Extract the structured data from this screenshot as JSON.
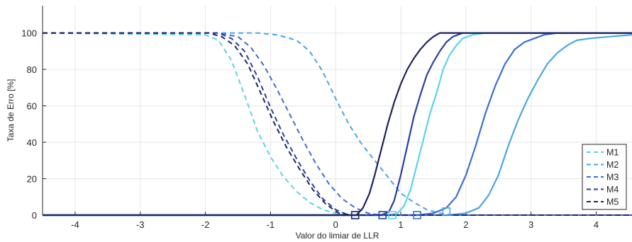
{
  "chart_data": {
    "type": "line",
    "title": "",
    "xlabel": "Valor do limiar de LLR",
    "ylabel": "Taxa de Erro [%]",
    "xlim": [
      -4.5,
      4.55
    ],
    "ylim": [
      0,
      115
    ],
    "xticks": [
      -4,
      -3,
      -2,
      -1,
      0,
      1,
      2,
      3,
      4
    ],
    "yticks": [
      0,
      20,
      40,
      60,
      80,
      100
    ],
    "grid": true,
    "legend_position": "right",
    "series": [
      {
        "name": "M1",
        "color": "#5bd3ea",
        "dashed_curve": [
          [
            -4.5,
            100
          ],
          [
            -2.0,
            99
          ],
          [
            -1.8,
            96
          ],
          [
            -1.6,
            85
          ],
          [
            -1.4,
            66
          ],
          [
            -1.2,
            46
          ],
          [
            -1.0,
            32
          ],
          [
            -0.8,
            21
          ],
          [
            -0.6,
            13
          ],
          [
            -0.4,
            7
          ],
          [
            -0.2,
            3
          ],
          [
            0.0,
            1
          ],
          [
            0.2,
            0
          ],
          [
            4.55,
            0
          ]
        ],
        "solid_curve": [
          [
            -4.5,
            0
          ],
          [
            0.8,
            0
          ],
          [
            0.95,
            1
          ],
          [
            1.05,
            5
          ],
          [
            1.15,
            14
          ],
          [
            1.25,
            28
          ],
          [
            1.35,
            42
          ],
          [
            1.45,
            56
          ],
          [
            1.55,
            67
          ],
          [
            1.65,
            80
          ],
          [
            1.75,
            88
          ],
          [
            1.85,
            93
          ],
          [
            1.95,
            97
          ],
          [
            2.1,
            99
          ],
          [
            2.3,
            100
          ],
          [
            4.55,
            100
          ]
        ],
        "marker": [
          0.87,
          0
        ]
      },
      {
        "name": "M2",
        "color": "#4ba6e4",
        "dashed_curve": [
          [
            -4.5,
            100
          ],
          [
            -1.2,
            100
          ],
          [
            -0.9,
            99
          ],
          [
            -0.6,
            96
          ],
          [
            -0.4,
            90
          ],
          [
            -0.2,
            79
          ],
          [
            0.0,
            64
          ],
          [
            0.2,
            50
          ],
          [
            0.4,
            39
          ],
          [
            0.6,
            30
          ],
          [
            0.8,
            21
          ],
          [
            1.0,
            12
          ],
          [
            1.2,
            7
          ],
          [
            1.4,
            3
          ],
          [
            1.6,
            1
          ],
          [
            1.8,
            0
          ],
          [
            4.55,
            0
          ]
        ],
        "solid_curve": [
          [
            -4.5,
            0
          ],
          [
            1.7,
            0
          ],
          [
            2.0,
            1
          ],
          [
            2.2,
            4
          ],
          [
            2.35,
            11
          ],
          [
            2.5,
            22
          ],
          [
            2.65,
            38
          ],
          [
            2.8,
            52
          ],
          [
            2.95,
            64
          ],
          [
            3.1,
            74
          ],
          [
            3.25,
            83
          ],
          [
            3.4,
            89
          ],
          [
            3.55,
            93
          ],
          [
            3.7,
            96
          ],
          [
            3.9,
            97
          ],
          [
            4.2,
            98
          ],
          [
            4.55,
            99
          ]
        ],
        "marker": [
          1.7,
          2
        ]
      },
      {
        "name": "M3",
        "color": "#3b6fd0",
        "dashed_curve": [
          [
            -4.5,
            100
          ],
          [
            -1.8,
            100
          ],
          [
            -1.5,
            98
          ],
          [
            -1.3,
            92
          ],
          [
            -1.1,
            82
          ],
          [
            -0.9,
            69
          ],
          [
            -0.7,
            55
          ],
          [
            -0.5,
            41
          ],
          [
            -0.3,
            28
          ],
          [
            -0.1,
            17
          ],
          [
            0.1,
            9
          ],
          [
            0.3,
            4
          ],
          [
            0.5,
            1
          ],
          [
            0.7,
            0
          ],
          [
            4.55,
            0
          ]
        ],
        "solid_curve": [
          [
            -4.5,
            0
          ],
          [
            1.25,
            0
          ],
          [
            1.5,
            1
          ],
          [
            1.7,
            4
          ],
          [
            1.85,
            10
          ],
          [
            2.0,
            22
          ],
          [
            2.15,
            38
          ],
          [
            2.3,
            56
          ],
          [
            2.45,
            71
          ],
          [
            2.6,
            83
          ],
          [
            2.75,
            91
          ],
          [
            2.9,
            95
          ],
          [
            3.05,
            97
          ],
          [
            3.2,
            99
          ],
          [
            3.4,
            100
          ],
          [
            4.55,
            100
          ]
        ],
        "marker": [
          1.25,
          0
        ]
      },
      {
        "name": "M4",
        "color": "#2a3f9e",
        "dashed_curve": [
          [
            -4.5,
            100
          ],
          [
            -1.8,
            100
          ],
          [
            -1.6,
            97
          ],
          [
            -1.4,
            90
          ],
          [
            -1.2,
            76
          ],
          [
            -1.0,
            59
          ],
          [
            -0.8,
            44
          ],
          [
            -0.6,
            31
          ],
          [
            -0.4,
            19
          ],
          [
            -0.2,
            9
          ],
          [
            0.0,
            3
          ],
          [
            0.2,
            0
          ],
          [
            4.55,
            0
          ]
        ],
        "solid_curve": [
          [
            -4.5,
            0
          ],
          [
            0.7,
            0
          ],
          [
            0.82,
            2
          ],
          [
            0.9,
            8
          ],
          [
            1.0,
            22
          ],
          [
            1.1,
            38
          ],
          [
            1.2,
            54
          ],
          [
            1.3,
            66
          ],
          [
            1.4,
            77
          ],
          [
            1.5,
            84
          ],
          [
            1.6,
            90
          ],
          [
            1.7,
            95
          ],
          [
            1.8,
            98
          ],
          [
            1.95,
            100
          ],
          [
            4.55,
            100
          ]
        ],
        "marker": [
          0.72,
          0
        ]
      },
      {
        "name": "M5",
        "color": "#1d2360",
        "dashed_curve": [
          [
            -4.5,
            100
          ],
          [
            -1.95,
            100
          ],
          [
            -1.75,
            98
          ],
          [
            -1.55,
            93
          ],
          [
            -1.35,
            83
          ],
          [
            -1.15,
            67
          ],
          [
            -0.95,
            51
          ],
          [
            -0.75,
            37
          ],
          [
            -0.55,
            25
          ],
          [
            -0.35,
            14
          ],
          [
            -0.15,
            6
          ],
          [
            0.05,
            1
          ],
          [
            0.25,
            0
          ],
          [
            4.55,
            0
          ]
        ],
        "solid_curve": [
          [
            -4.5,
            0
          ],
          [
            0.32,
            0
          ],
          [
            0.42,
            4
          ],
          [
            0.52,
            12
          ],
          [
            0.6,
            22
          ],
          [
            0.7,
            36
          ],
          [
            0.8,
            50
          ],
          [
            0.9,
            62
          ],
          [
            1.0,
            72
          ],
          [
            1.1,
            80
          ],
          [
            1.2,
            86
          ],
          [
            1.3,
            91
          ],
          [
            1.4,
            95
          ],
          [
            1.5,
            98
          ],
          [
            1.6,
            100
          ],
          [
            4.55,
            100
          ]
        ],
        "marker": [
          0.3,
          0
        ]
      }
    ]
  }
}
